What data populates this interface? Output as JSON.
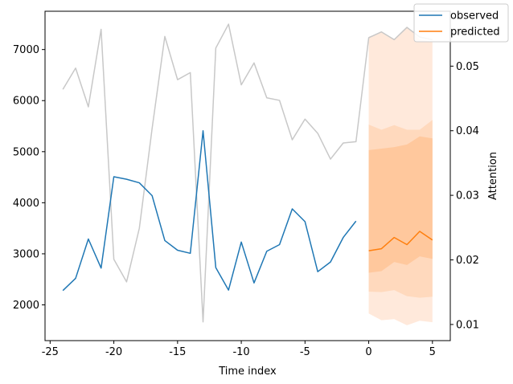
{
  "chart_data": {
    "type": "line",
    "xlabel": "Time index",
    "ylabel_left": "",
    "ylabel_right": "Attention",
    "xlim": [
      -25.4,
      6.4
    ],
    "ylim_left": [
      1300,
      7750
    ],
    "ylim_right": [
      0.0075,
      0.0585
    ],
    "x_ticks": [
      -25,
      -20,
      -15,
      -10,
      -5,
      0,
      5
    ],
    "y_left_ticks": [
      2000,
      3000,
      4000,
      5000,
      6000,
      7000
    ],
    "y_right_ticks": [
      0.01,
      0.02,
      0.03,
      0.04,
      0.05
    ],
    "y_right_tick_labels": [
      "0.01",
      "0.02",
      "0.03",
      "0.04",
      "0.05"
    ],
    "legend": {
      "placement": "top-right",
      "entries": [
        {
          "label": "observed",
          "color": "#1f77b4"
        },
        {
          "label": "predicted",
          "color": "#ff7f0e"
        }
      ]
    },
    "series": [
      {
        "name": "observed",
        "axis": "left",
        "color": "#1f77b4",
        "x": [
          -24,
          -23,
          -22,
          -21,
          -20,
          -19,
          -18,
          -17,
          -16,
          -15,
          -14,
          -13,
          -12,
          -11,
          -10,
          -9,
          -8,
          -7,
          -6,
          -5,
          -4,
          -3,
          -2,
          -1
        ],
        "values": [
          2280,
          2520,
          3290,
          2720,
          4510,
          4460,
          4390,
          4140,
          3260,
          3070,
          3010,
          5410,
          2730,
          2290,
          3230,
          2430,
          3050,
          3180,
          3880,
          3630,
          2650,
          2840,
          3320,
          3640
        ]
      },
      {
        "name": "attention",
        "axis": "right",
        "color": "#c8c8c8",
        "x": [
          -24,
          -23,
          -22,
          -21,
          -20,
          -19,
          -18,
          -17,
          -16,
          -15,
          -14,
          -13,
          -12,
          -11,
          -10,
          -9,
          -8,
          -7,
          -6,
          -5,
          -4,
          -3,
          -2,
          -1,
          0,
          1,
          2,
          3,
          4,
          5
        ],
        "values": [
          0.0464,
          0.0497,
          0.0437,
          0.0557,
          0.0201,
          0.0166,
          0.0249,
          0.0403,
          0.0546,
          0.0479,
          0.049,
          0.0104,
          0.0528,
          0.0565,
          0.0471,
          0.0505,
          0.0451,
          0.0447,
          0.0386,
          0.0418,
          0.0396,
          0.0356,
          0.0381,
          0.0383,
          0.0544,
          0.0553,
          0.0541,
          0.056,
          0.0545,
          0.0541
        ]
      },
      {
        "name": "predicted",
        "axis": "left",
        "color": "#ff7f0e",
        "x": [
          0,
          1,
          2,
          3,
          4,
          5
        ],
        "values": [
          3060,
          3100,
          3320,
          3180,
          3440,
          3270
        ]
      }
    ],
    "prediction_intervals": [
      {
        "level": "outer",
        "color": "#ffe9db",
        "x": [
          0,
          1,
          2,
          3,
          4,
          5
        ],
        "lower": [
          1830,
          1700,
          1720,
          1600,
          1690,
          1660
        ],
        "upper": [
          7250,
          7340,
          7210,
          7450,
          7200,
          7150
        ]
      },
      {
        "level": "middle",
        "color": "#ffd9bd",
        "x": [
          0,
          1,
          2,
          3,
          4,
          5
        ],
        "lower": [
          2260,
          2250,
          2290,
          2170,
          2140,
          2160
        ],
        "upper": [
          5530,
          5430,
          5520,
          5430,
          5430,
          5620
        ]
      },
      {
        "level": "inner",
        "color": "#ffc89d",
        "x": [
          0,
          1,
          2,
          3,
          4,
          5
        ],
        "lower": [
          2630,
          2660,
          2840,
          2780,
          2950,
          2900
        ],
        "upper": [
          5030,
          5060,
          5090,
          5140,
          5300,
          5260
        ]
      }
    ]
  }
}
